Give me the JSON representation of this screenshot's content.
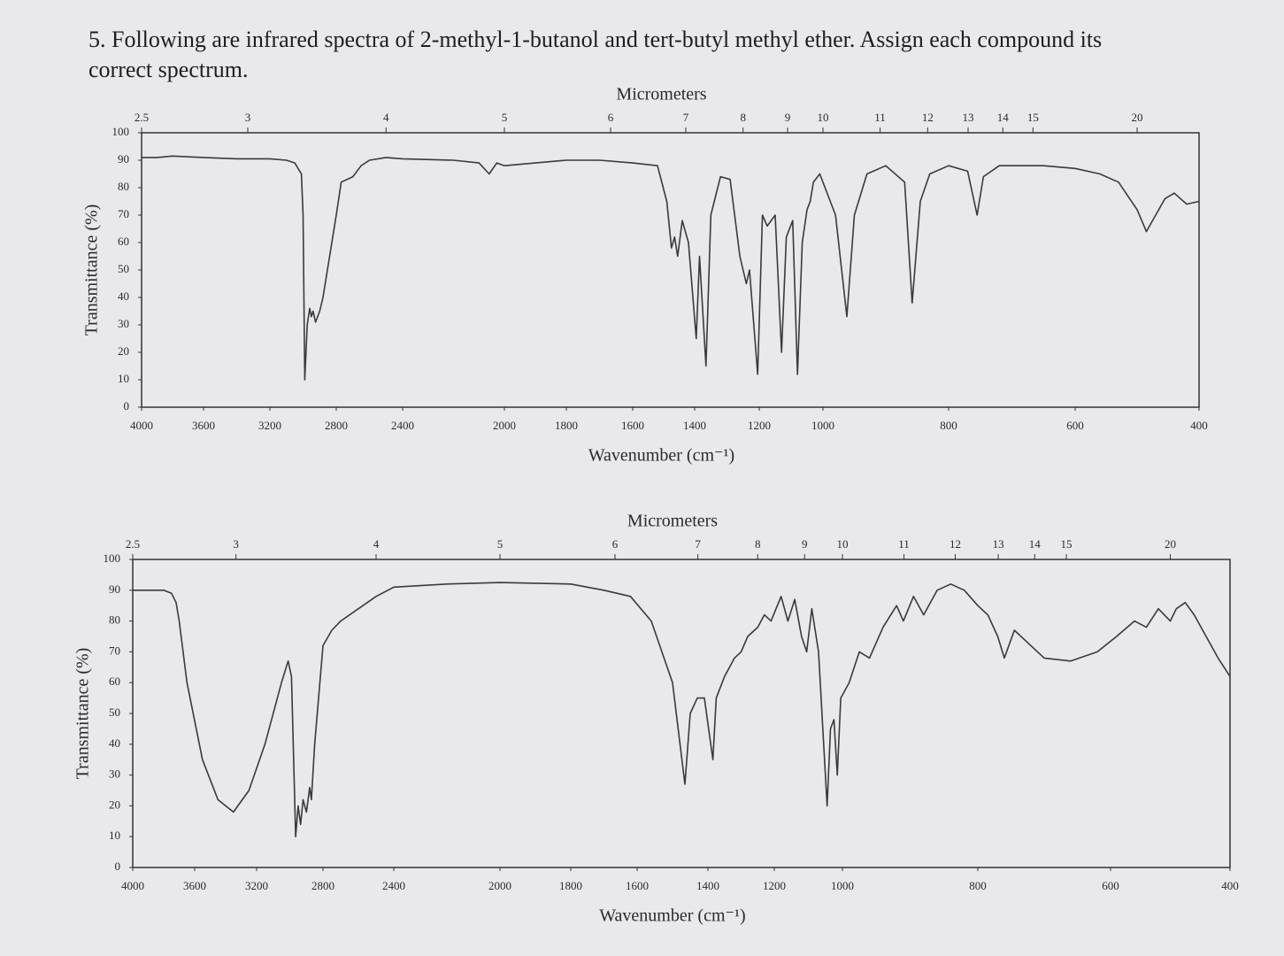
{
  "question": "5. Following are infrared spectra of 2-methyl-1-butanol and tert-butyl methyl ether. Assign each compound its correct spectrum.",
  "chart_data": [
    {
      "type": "line",
      "color": "#3a3a3e",
      "x_label": "Wavenumber (cm⁻¹)",
      "y_label": "Transmittance (%)",
      "top_axis_label": "Micrometers",
      "top_ticks": [
        2.5,
        3,
        4,
        5,
        6,
        7,
        8,
        9,
        10,
        11,
        12,
        13,
        14,
        15,
        20
      ],
      "xlim": [
        4000,
        400
      ],
      "xticks": [
        4000,
        3600,
        3200,
        2800,
        2400,
        2000,
        1800,
        1600,
        1400,
        1200,
        1000,
        800,
        600,
        400
      ],
      "ylim": [
        0,
        100
      ],
      "yticks": [
        0,
        10,
        20,
        30,
        40,
        50,
        60,
        70,
        80,
        90,
        100
      ],
      "x": [
        4000,
        3900,
        3800,
        3600,
        3400,
        3200,
        3100,
        3050,
        3010,
        3000,
        2990,
        2975,
        2960,
        2950,
        2940,
        2925,
        2900,
        2880,
        2800,
        2770,
        2700,
        2650,
        2600,
        2500,
        2400,
        2200,
        2100,
        2060,
        2030,
        2000,
        1900,
        1800,
        1700,
        1600,
        1520,
        1490,
        1475,
        1465,
        1455,
        1440,
        1420,
        1395,
        1385,
        1365,
        1350,
        1320,
        1290,
        1260,
        1240,
        1230,
        1205,
        1190,
        1175,
        1150,
        1130,
        1115,
        1095,
        1080,
        1065,
        1050,
        1040,
        1030,
        1010,
        980,
        962,
        950,
        930,
        900,
        870,
        858,
        845,
        830,
        800,
        770,
        755,
        745,
        720,
        650,
        600,
        560,
        530,
        500,
        485,
        470,
        455,
        440,
        420,
        400
      ],
      "values": [
        91,
        91,
        91.5,
        91,
        90.5,
        90.5,
        90,
        89,
        85,
        70,
        10,
        30,
        36,
        33,
        35,
        31,
        35,
        40,
        70,
        82,
        84,
        88,
        90,
        91,
        90.5,
        90,
        89,
        85,
        89,
        88,
        89,
        90,
        90,
        89,
        88,
        75,
        58,
        62,
        55,
        68,
        60,
        25,
        55,
        15,
        70,
        84,
        83,
        55,
        45,
        50,
        12,
        70,
        66,
        70,
        20,
        62,
        68,
        12,
        60,
        72,
        75,
        82,
        85,
        70,
        33,
        70,
        85,
        88,
        82,
        38,
        75,
        85,
        88,
        86,
        70,
        84,
        88,
        88,
        87,
        85,
        82,
        72,
        64,
        70,
        76,
        78,
        74,
        75
      ]
    },
    {
      "type": "line",
      "color": "#3a3a3e",
      "x_label": "Wavenumber (cm⁻¹)",
      "y_label": "Transmittance (%)",
      "top_axis_label": "Micrometers",
      "top_ticks": [
        2.5,
        3,
        4,
        5,
        6,
        7,
        8,
        9,
        10,
        11,
        12,
        13,
        14,
        15,
        20
      ],
      "xlim": [
        4000,
        400
      ],
      "xticks": [
        4000,
        3600,
        3200,
        2800,
        2400,
        2000,
        1800,
        1600,
        1400,
        1200,
        1000,
        800,
        600,
        400
      ],
      "ylim": [
        0,
        100
      ],
      "yticks": [
        0,
        10,
        20,
        30,
        40,
        50,
        60,
        70,
        80,
        90,
        100
      ],
      "x": [
        4000,
        3900,
        3800,
        3750,
        3720,
        3700,
        3650,
        3550,
        3450,
        3350,
        3250,
        3150,
        3050,
        3010,
        2990,
        2965,
        2950,
        2935,
        2920,
        2900,
        2880,
        2870,
        2850,
        2800,
        2750,
        2700,
        2600,
        2500,
        2400,
        2200,
        2000,
        1800,
        1700,
        1620,
        1560,
        1500,
        1465,
        1450,
        1430,
        1410,
        1385,
        1375,
        1350,
        1320,
        1300,
        1280,
        1250,
        1230,
        1210,
        1180,
        1160,
        1140,
        1120,
        1105,
        1090,
        1070,
        1055,
        1045,
        1035,
        1025,
        1015,
        1005,
        990,
        975,
        960,
        940,
        920,
        910,
        895,
        880,
        860,
        840,
        820,
        800,
        785,
        770,
        760,
        745,
        720,
        700,
        660,
        620,
        590,
        560,
        540,
        520,
        500,
        490,
        475,
        460,
        440,
        420,
        400
      ],
      "values": [
        90,
        90,
        90,
        89,
        86,
        80,
        60,
        35,
        22,
        18,
        25,
        40,
        60,
        67,
        62,
        10,
        20,
        14,
        22,
        18,
        26,
        22,
        40,
        72,
        77,
        80,
        84,
        88,
        91,
        92,
        92.5,
        92,
        90,
        88,
        80,
        60,
        27,
        50,
        55,
        55,
        35,
        55,
        62,
        68,
        70,
        75,
        78,
        82,
        80,
        88,
        80,
        87,
        75,
        70,
        84,
        70,
        40,
        20,
        45,
        48,
        30,
        55,
        60,
        70,
        68,
        78,
        85,
        80,
        88,
        82,
        90,
        92,
        90,
        85,
        82,
        75,
        68,
        77,
        72,
        68,
        67,
        70,
        75,
        80,
        78,
        84,
        80,
        84,
        86,
        82,
        75,
        68,
        62
      ]
    }
  ]
}
